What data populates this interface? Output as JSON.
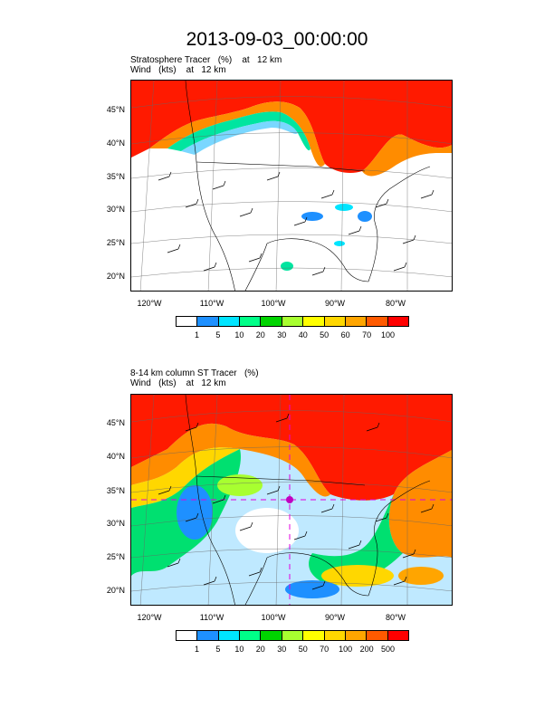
{
  "title": "2013-09-03_00:00:00",
  "panels": [
    {
      "subtitle_line1": "Stratosphere Tracer   (%)    at   12 km",
      "subtitle_line2": "Wind   (kts)    at   12 km",
      "lat_labels": [
        "45°N",
        "40°N",
        "35°N",
        "30°N",
        "25°N",
        "20°N"
      ],
      "lon_labels": [
        "120°W",
        "110°W",
        "100°W",
        "90°W",
        "80°W"
      ],
      "legend": {
        "colors": [
          "#ffffff",
          "#1e90ff",
          "#00e5ff",
          "#00ff88",
          "#00d400",
          "#a8ff30",
          "#ffff00",
          "#ffd700",
          "#ffa500",
          "#ff5a00",
          "#ff0000"
        ],
        "ticks": [
          "1",
          "5",
          "10",
          "20",
          "30",
          "40",
          "50",
          "60",
          "70",
          "100"
        ]
      }
    },
    {
      "subtitle_line1": "8-14 km column ST Tracer   (%)",
      "subtitle_line2": "Wind   (kts)    at   12 km",
      "lat_labels": [
        "45°N",
        "40°N",
        "35°N",
        "30°N",
        "25°N",
        "20°N"
      ],
      "lon_labels": [
        "120°W",
        "110°W",
        "100°W",
        "90°W",
        "80°W"
      ],
      "legend": {
        "colors": [
          "#ffffff",
          "#1e90ff",
          "#00e5ff",
          "#00ff88",
          "#00d400",
          "#a8ff30",
          "#ffff00",
          "#ffd700",
          "#ffa500",
          "#ff5a00",
          "#ff0000"
        ],
        "ticks": [
          "1",
          "5",
          "10",
          "20",
          "30",
          "50",
          "70",
          "100",
          "200",
          "500"
        ]
      }
    }
  ]
}
